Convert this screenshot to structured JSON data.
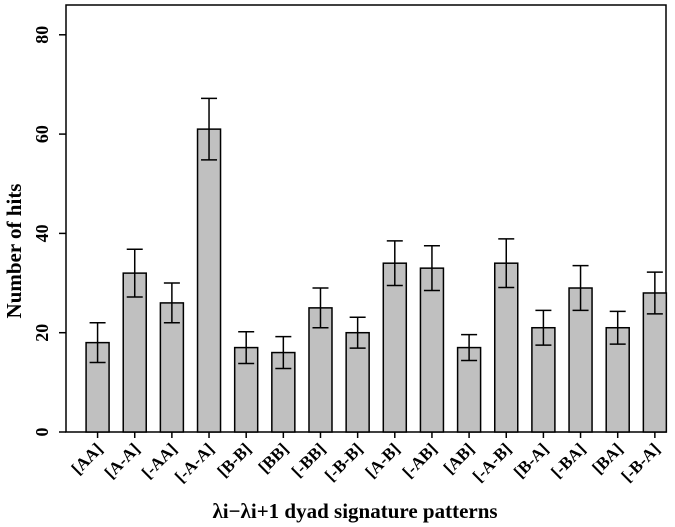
{
  "chart_data": {
    "type": "bar",
    "title": "",
    "xlabel_main": "λi−λi+1",
    "xlabel_rest": " dyad signature patterns",
    "ylabel": "Number of hits",
    "ylim": [
      0,
      86
    ],
    "yticks": [
      "0",
      "20",
      "40",
      "60",
      "80"
    ],
    "categories": [
      "[AA]",
      "[A-A]",
      "[-AA]",
      "[-A-A]",
      "[B-B]",
      "[BB]",
      "[-BB]",
      "[-B-B]",
      "[A-B]",
      "[-AB]",
      "[AB]",
      "[-A-B]",
      "[B-A]",
      "[-BA]",
      "[BA]",
      "[-B-A]"
    ],
    "values": [
      18,
      32,
      26,
      61,
      17,
      16,
      25,
      20,
      34,
      33,
      17,
      34,
      21,
      29,
      21,
      28
    ],
    "error": [
      4,
      4.8,
      4,
      6.2,
      3.2,
      3.2,
      4,
      3.1,
      4.5,
      4.5,
      2.6,
      4.9,
      3.5,
      4.5,
      3.3,
      4.2
    ],
    "bar_color": "#c0c0c0",
    "grid": false
  }
}
